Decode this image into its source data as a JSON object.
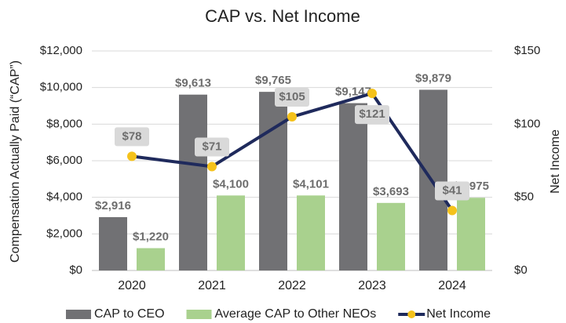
{
  "chart_data": {
    "type": "bar-line",
    "title": "CAP vs. Net Income",
    "y_label": "Compensation Actually Paid (“CAP”)",
    "y2_label": "Net Income",
    "categories": [
      "2020",
      "2021",
      "2022",
      "2023",
      "2024"
    ],
    "series": [
      {
        "name": "CAP to CEO",
        "type": "bar",
        "color": "#717174",
        "values": [
          2916,
          9613,
          9765,
          9147,
          9879
        ],
        "value_labels": [
          "$2,916",
          "$9,613",
          "$9,765",
          "$9,147",
          "$9,879"
        ]
      },
      {
        "name": "Average CAP to Other NEOs",
        "type": "bar",
        "color": "#a9d18e",
        "values": [
          1220,
          4100,
          4101,
          3693,
          3975
        ],
        "value_labels": [
          "$1,220",
          "$4,100",
          "$4,101",
          "$3,693",
          "$3,975"
        ]
      },
      {
        "name": "Net Income",
        "type": "line",
        "axis": "y2",
        "color": "#1f2a5c",
        "marker_color": "#f5c21b",
        "values": [
          78,
          71,
          105,
          121,
          41
        ],
        "value_labels": [
          "$78",
          "$71",
          "$105",
          "$121",
          "$41"
        ]
      }
    ],
    "ylim": [
      0,
      12000
    ],
    "yticks": [
      {
        "value": 0,
        "label": "$0"
      },
      {
        "value": 2000,
        "label": "$2,000"
      },
      {
        "value": 4000,
        "label": "$4,000"
      },
      {
        "value": 6000,
        "label": "$6,000"
      },
      {
        "value": 8000,
        "label": "$8,000"
      },
      {
        "value": 10000,
        "label": "$10,000"
      },
      {
        "value": 12000,
        "label": "$12,000"
      }
    ],
    "y2lim": [
      0,
      150
    ],
    "y2ticks": [
      {
        "value": 0,
        "label": "$0"
      },
      {
        "value": 50,
        "label": "$50"
      },
      {
        "value": 100,
        "label": "$100"
      },
      {
        "value": 150,
        "label": "$150"
      }
    ],
    "grid": true,
    "legend": "bottom"
  }
}
